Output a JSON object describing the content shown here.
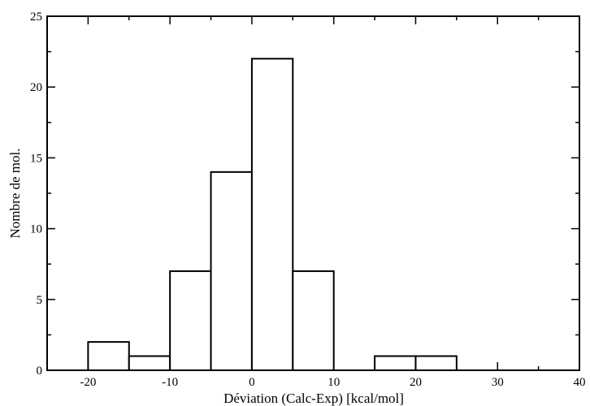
{
  "chart_data": {
    "type": "bar",
    "title": "",
    "xlabel": "Déviation (Calc-Exp) [kcal/mol]",
    "ylabel": "Nombre de mol.",
    "xlim": [
      -25,
      40
    ],
    "ylim": [
      0,
      25
    ],
    "bin_width": 5,
    "bins": [
      {
        "start": -20,
        "end": -15,
        "count": 2
      },
      {
        "start": -15,
        "end": -10,
        "count": 1
      },
      {
        "start": -10,
        "end": -5,
        "count": 7
      },
      {
        "start": -5,
        "end": 0,
        "count": 14
      },
      {
        "start": 0,
        "end": 5,
        "count": 22
      },
      {
        "start": 5,
        "end": 10,
        "count": 7
      },
      {
        "start": 10,
        "end": 15,
        "count": 0
      },
      {
        "start": 15,
        "end": 20,
        "count": 1
      },
      {
        "start": 20,
        "end": 25,
        "count": 1
      }
    ],
    "x_ticks": [
      "-20",
      "-10",
      "0",
      "10",
      "20",
      "30",
      "40"
    ],
    "y_ticks": [
      "0",
      "5",
      "10",
      "15",
      "20",
      "25"
    ],
    "grid": false,
    "fill_color": "#ffffff",
    "stroke_color": "#000000"
  }
}
